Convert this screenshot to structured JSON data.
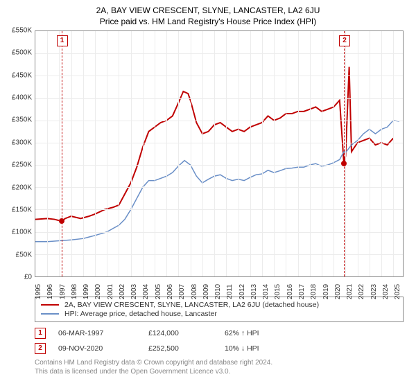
{
  "title": "2A, BAY VIEW CRESCENT, SLYNE, LANCASTER, LA2 6JU",
  "subtitle": "Price paid vs. HM Land Registry's House Price Index (HPI)",
  "chart": {
    "type": "line",
    "ylim": [
      0,
      550000
    ],
    "ytick_step": 50000,
    "ytick_labels": [
      "£0",
      "£50K",
      "£100K",
      "£150K",
      "£200K",
      "£250K",
      "£300K",
      "£350K",
      "£400K",
      "£450K",
      "£500K",
      "£550K"
    ],
    "xlim": [
      1995,
      2025.8
    ],
    "xtick_step": 1,
    "xtick_labels": [
      "1995",
      "1996",
      "1997",
      "1998",
      "1999",
      "2000",
      "2001",
      "2002",
      "2003",
      "2004",
      "2005",
      "2006",
      "2007",
      "2008",
      "2009",
      "2010",
      "2011",
      "2012",
      "2013",
      "2014",
      "2015",
      "2016",
      "2017",
      "2018",
      "2019",
      "2020",
      "2021",
      "2022",
      "2023",
      "2024",
      "2025"
    ],
    "background_color": "#ffffff",
    "grid_color": "#ececec",
    "border_color": "#888888",
    "series": [
      {
        "name": "price",
        "color": "#c00000",
        "width": 2,
        "points": [
          [
            1995.0,
            128000
          ],
          [
            1996.0,
            130000
          ],
          [
            1996.6,
            128000
          ],
          [
            1997.18,
            124000
          ],
          [
            1997.5,
            130000
          ],
          [
            1998.0,
            135000
          ],
          [
            1998.8,
            130000
          ],
          [
            1999.5,
            135000
          ],
          [
            2000.0,
            140000
          ],
          [
            2000.8,
            150000
          ],
          [
            2001.5,
            155000
          ],
          [
            2002.0,
            160000
          ],
          [
            2002.5,
            185000
          ],
          [
            2003.0,
            210000
          ],
          [
            2003.5,
            245000
          ],
          [
            2004.0,
            290000
          ],
          [
            2004.5,
            325000
          ],
          [
            2005.0,
            335000
          ],
          [
            2005.5,
            345000
          ],
          [
            2006.0,
            350000
          ],
          [
            2006.5,
            360000
          ],
          [
            2007.0,
            390000
          ],
          [
            2007.4,
            415000
          ],
          [
            2007.8,
            410000
          ],
          [
            2008.0,
            395000
          ],
          [
            2008.5,
            345000
          ],
          [
            2009.0,
            320000
          ],
          [
            2009.5,
            325000
          ],
          [
            2010.0,
            340000
          ],
          [
            2010.5,
            345000
          ],
          [
            2011.0,
            335000
          ],
          [
            2011.5,
            325000
          ],
          [
            2012.0,
            330000
          ],
          [
            2012.5,
            325000
          ],
          [
            2013.0,
            335000
          ],
          [
            2013.5,
            340000
          ],
          [
            2014.0,
            345000
          ],
          [
            2014.5,
            360000
          ],
          [
            2015.0,
            350000
          ],
          [
            2015.5,
            355000
          ],
          [
            2016.0,
            365000
          ],
          [
            2016.5,
            365000
          ],
          [
            2017.0,
            370000
          ],
          [
            2017.5,
            370000
          ],
          [
            2018.0,
            375000
          ],
          [
            2018.5,
            380000
          ],
          [
            2019.0,
            370000
          ],
          [
            2019.5,
            375000
          ],
          [
            2020.0,
            380000
          ],
          [
            2020.5,
            395000
          ],
          [
            2020.86,
            252500
          ],
          [
            2021.0,
            270000
          ],
          [
            2021.3,
            470000
          ],
          [
            2021.5,
            280000
          ],
          [
            2022.0,
            300000
          ],
          [
            2022.5,
            305000
          ],
          [
            2023.0,
            310000
          ],
          [
            2023.5,
            295000
          ],
          [
            2024.0,
            300000
          ],
          [
            2024.5,
            295000
          ],
          [
            2025.0,
            310000
          ]
        ]
      },
      {
        "name": "hpi",
        "color": "#6a8fc7",
        "width": 1.5,
        "points": [
          [
            1995.0,
            78000
          ],
          [
            1996.0,
            78000
          ],
          [
            1997.0,
            80000
          ],
          [
            1998.0,
            82000
          ],
          [
            1999.0,
            85000
          ],
          [
            2000.0,
            92000
          ],
          [
            2001.0,
            100000
          ],
          [
            2002.0,
            115000
          ],
          [
            2002.5,
            128000
          ],
          [
            2003.0,
            150000
          ],
          [
            2003.5,
            175000
          ],
          [
            2004.0,
            200000
          ],
          [
            2004.5,
            215000
          ],
          [
            2005.0,
            215000
          ],
          [
            2005.5,
            220000
          ],
          [
            2006.0,
            225000
          ],
          [
            2006.5,
            233000
          ],
          [
            2007.0,
            248000
          ],
          [
            2007.5,
            260000
          ],
          [
            2008.0,
            250000
          ],
          [
            2008.5,
            225000
          ],
          [
            2009.0,
            210000
          ],
          [
            2009.5,
            218000
          ],
          [
            2010.0,
            225000
          ],
          [
            2010.5,
            228000
          ],
          [
            2011.0,
            220000
          ],
          [
            2011.5,
            215000
          ],
          [
            2012.0,
            218000
          ],
          [
            2012.5,
            215000
          ],
          [
            2013.0,
            222000
          ],
          [
            2013.5,
            228000
          ],
          [
            2014.0,
            230000
          ],
          [
            2014.5,
            238000
          ],
          [
            2015.0,
            233000
          ],
          [
            2015.5,
            237000
          ],
          [
            2016.0,
            242000
          ],
          [
            2016.5,
            243000
          ],
          [
            2017.0,
            245000
          ],
          [
            2017.5,
            245000
          ],
          [
            2018.0,
            250000
          ],
          [
            2018.5,
            253000
          ],
          [
            2019.0,
            247000
          ],
          [
            2019.5,
            250000
          ],
          [
            2020.0,
            255000
          ],
          [
            2020.5,
            262000
          ],
          [
            2020.86,
            280000
          ],
          [
            2021.0,
            278000
          ],
          [
            2021.5,
            295000
          ],
          [
            2022.0,
            305000
          ],
          [
            2022.5,
            320000
          ],
          [
            2023.0,
            330000
          ],
          [
            2023.5,
            320000
          ],
          [
            2024.0,
            330000
          ],
          [
            2024.5,
            335000
          ],
          [
            2025.0,
            350000
          ],
          [
            2025.5,
            348000
          ]
        ]
      }
    ],
    "event_markers": [
      {
        "n": "1",
        "x": 1997.18,
        "y": 124000,
        "dash_color": "#c00000",
        "dot_color": "#c00000"
      },
      {
        "n": "2",
        "x": 2020.86,
        "y": 252500,
        "dash_color": "#c00000",
        "dot_color": "#c00000"
      }
    ]
  },
  "legend": {
    "items": [
      {
        "color": "#c00000",
        "label": "2A, BAY VIEW CRESCENT, SLYNE, LANCASTER, LA2 6JU (detached house)"
      },
      {
        "color": "#6a8fc7",
        "label": "HPI: Average price, detached house, Lancaster"
      }
    ]
  },
  "events": [
    {
      "n": "1",
      "date": "06-MAR-1997",
      "price": "£124,000",
      "delta": "62% ↑ HPI"
    },
    {
      "n": "2",
      "date": "09-NOV-2020",
      "price": "£252,500",
      "delta": "10% ↓ HPI"
    }
  ],
  "footer": {
    "line1": "Contains HM Land Registry data © Crown copyright and database right 2024.",
    "line2": "This data is licensed under the Open Government Licence v3.0."
  }
}
